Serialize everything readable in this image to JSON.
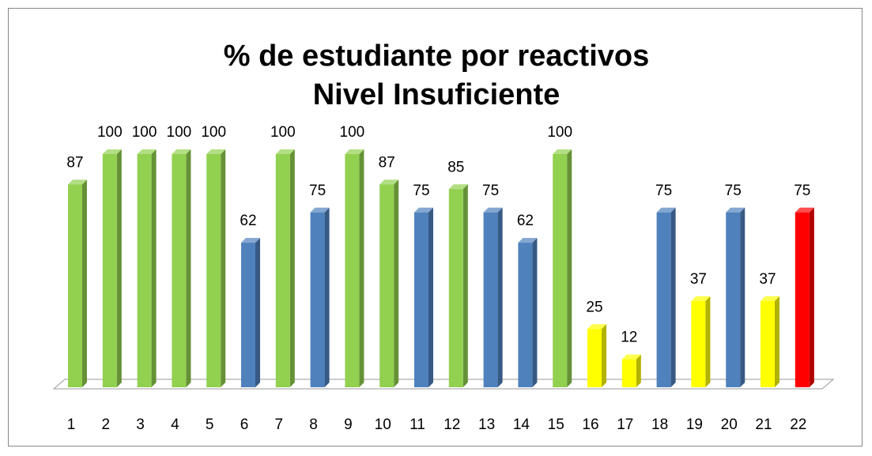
{
  "chart_data": {
    "type": "bar3d",
    "title": "% de estudiante por reactivos",
    "subtitle": "Nivel Insuficiente",
    "categories": [
      "1",
      "2",
      "3",
      "4",
      "5",
      "6",
      "7",
      "8",
      "9",
      "10",
      "11",
      "12",
      "13",
      "14",
      "15",
      "16",
      "17",
      "18",
      "19",
      "20",
      "21",
      "22"
    ],
    "values": [
      87,
      100,
      100,
      100,
      100,
      62,
      100,
      75,
      100,
      87,
      75,
      85,
      75,
      62,
      100,
      25,
      12,
      75,
      37,
      75,
      37,
      75
    ],
    "colors": [
      "#92d050",
      "#92d050",
      "#92d050",
      "#92d050",
      "#92d050",
      "#4f81bd",
      "#92d050",
      "#4f81bd",
      "#92d050",
      "#92d050",
      "#4f81bd",
      "#92d050",
      "#4f81bd",
      "#4f81bd",
      "#92d050",
      "#ffff00",
      "#ffff00",
      "#4f81bd",
      "#ffff00",
      "#4f81bd",
      "#ffff00",
      "#ff0000"
    ],
    "ylim": [
      0,
      100
    ]
  }
}
